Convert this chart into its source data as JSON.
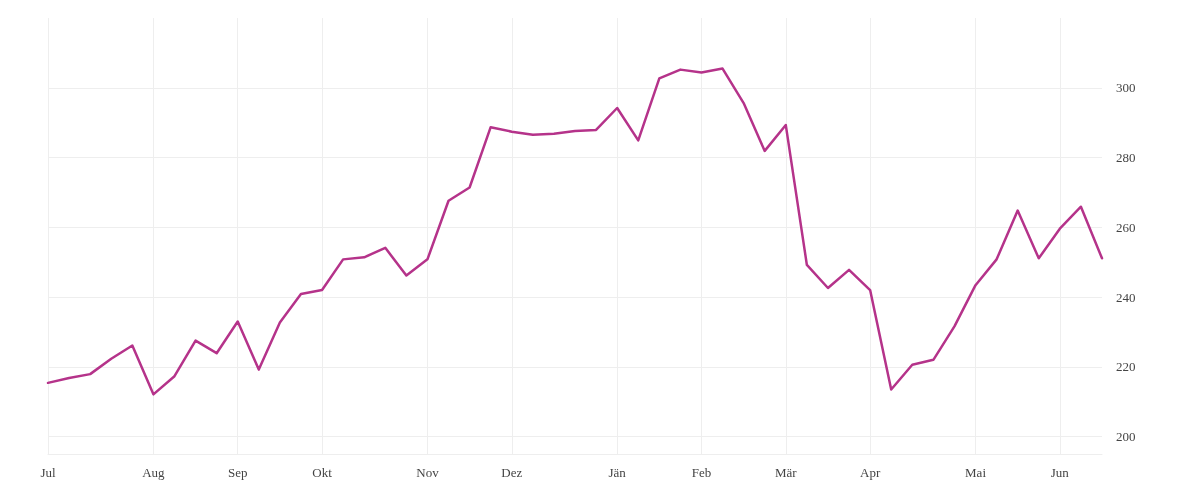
{
  "chart_data": {
    "type": "line",
    "categories": [
      "Jul",
      null,
      null,
      null,
      null,
      "Aug",
      null,
      null,
      null,
      "Sep",
      null,
      null,
      null,
      "Okt",
      null,
      null,
      null,
      null,
      "Nov",
      null,
      null,
      null,
      "Dez",
      null,
      null,
      null,
      null,
      "Jän",
      null,
      null,
      null,
      "Feb",
      null,
      null,
      null,
      "Mär",
      null,
      null,
      null,
      "Apr",
      null,
      null,
      null,
      null,
      "Mai",
      null,
      null,
      null,
      "Jun",
      null,
      null
    ],
    "series": [
      {
        "color": "#b5338a",
        "values": [
          215.4,
          216.8,
          217.9,
          222.3,
          226.1,
          212.1,
          217.3,
          227.5,
          223.9,
          233.0,
          219.2,
          232.7,
          240.9,
          242.0,
          250.8,
          251.4,
          254.1,
          246.2,
          250.8,
          267.6,
          271.4,
          288.7,
          287.4,
          286.5,
          286.8,
          287.6,
          287.9,
          294.2,
          284.9,
          302.7,
          305.2,
          304.4,
          305.5,
          295.6,
          281.9,
          289.3,
          249.2,
          242.6,
          247.8,
          242.0,
          213.5,
          220.6,
          222.0,
          231.6,
          243.4,
          250.8,
          264.8,
          251.1,
          259.6,
          265.9,
          251.1
        ]
      }
    ],
    "ylim": [
      195,
      320
    ],
    "yticks": [
      200,
      220,
      240,
      260,
      280,
      300
    ],
    "grid": true,
    "marker": "none",
    "line_style": "solid"
  }
}
